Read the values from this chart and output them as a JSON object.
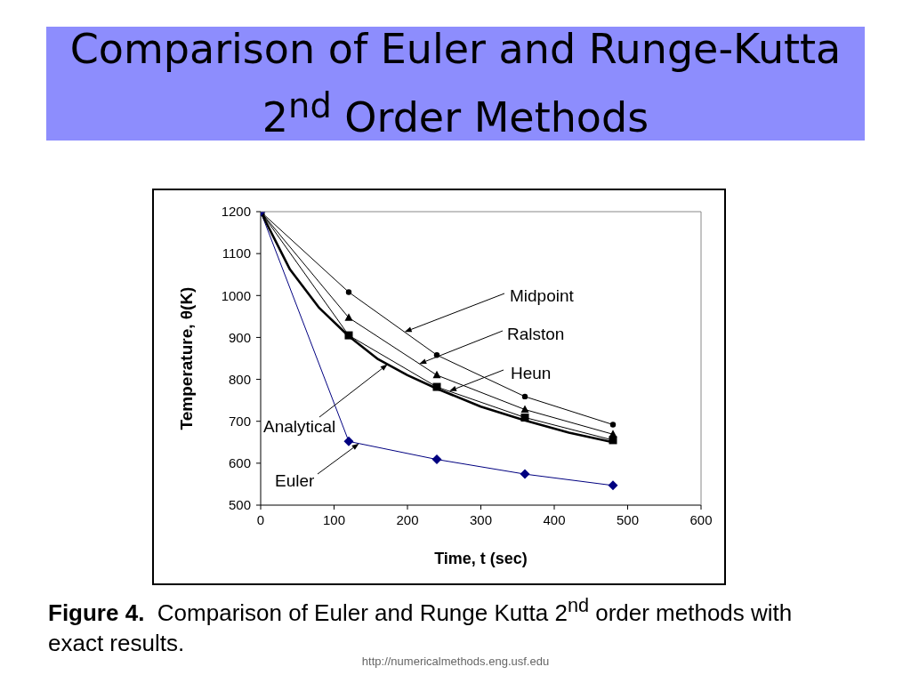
{
  "chart_data": {
    "type": "line",
    "title": "Comparison of Euler and Runge-Kutta 2$^{nd}$ Order Methods",
    "xlabel": "Time, t (sec)",
    "ylabel": "Temperature, θ(K)",
    "annotations": [
      "Figure 4.",
      "Comparison of Euler and Runge Kutta 2$^{nd}$ order methods with",
      "exact results.",
      "http://numericalmethods.eng.usf.edu",
      {
        "text": "Midpoint",
        "x": 196,
        "y": 913
      },
      {
        "text": "Ralston",
        "x": 216,
        "y": 837
      },
      {
        "text": "Heun",
        "x": 257,
        "y": 772
      },
      {
        "text": "Analytical",
        "x": 173,
        "y": 836
      },
      {
        "text": "Euler",
        "x": 134,
        "y": 647
      }
    ],
    "x": [
      0,
      120,
      240,
      360,
      480
    ],
    "series": [
      {
        "color": "#000000",
        "marker": "square",
        "values": [
          1200,
          905,
          782,
          709,
          655
        ]
      },
      {
        "color": "#000000",
        "marker": "triangle",
        "values": [
          1200,
          947,
          810,
          728,
          669
        ]
      },
      {
        "color": "#000000",
        "marker": "circle",
        "values": [
          1200,
          1008,
          858,
          759,
          692
        ]
      },
      {
        "color": "#000080",
        "marker": "diamond",
        "values": [
          1200,
          652,
          609,
          574,
          547
        ]
      },
      {
        "color": "#000000",
        "marker": "none",
        "x": [
          0,
          40,
          80,
          120,
          160,
          200,
          240,
          300,
          360,
          420,
          480
        ],
        "values": [
          1200,
          1062,
          970,
          903,
          848,
          810,
          778,
          735,
          702,
          673,
          650
        ]
      }
    ],
    "xlim": [
      0,
      600
    ],
    "xticks": [
      0,
      100,
      200,
      300,
      400,
      500,
      600
    ],
    "ylim": [
      500,
      1200
    ],
    "yticks": [
      500,
      600,
      700,
      800,
      900,
      1000,
      1100,
      1200
    ],
    "line_style": "solid"
  }
}
